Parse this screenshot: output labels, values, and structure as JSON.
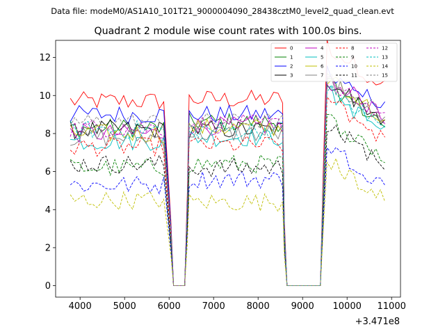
{
  "chart_data": {
    "type": "line",
    "suptitle": "Data file: modeM0/AS1A10_101T21_9000004090_28438cztM0_level2_quad_clean.evt",
    "title": "Quadrant 2 module wise count rates with 100.0s bins.",
    "xlabel": "",
    "ylabel": "",
    "x_offset_label": "+3.471e8",
    "xlim": [
      3450,
      11200
    ],
    "ylim": [
      -0.6,
      12.9
    ],
    "x_ticks": [
      4000,
      5000,
      6000,
      7000,
      8000,
      9000,
      10000,
      11000
    ],
    "x_tick_labels": [
      "4000",
      "5000",
      "6000",
      "7000",
      "8000",
      "9000",
      "10000",
      "11000"
    ],
    "y_ticks": [
      0,
      2,
      4,
      6,
      8,
      10,
      12
    ],
    "y_tick_labels": [
      "0",
      "2",
      "4",
      "6",
      "8",
      "10",
      "12"
    ],
    "grid": false,
    "legend_position": "top-right",
    "gap_segments": [
      {
        "x": [
          5950,
          6000,
          6050,
          6100,
          6150,
          6200,
          6250,
          6300,
          6350,
          6400
        ],
        "zero_from": 6100,
        "zero_to": 6350
      },
      {
        "x": [
          8550,
          8600,
          8650,
          8700,
          8750,
          8800,
          8850,
          8900,
          8950,
          9000,
          9050,
          9100,
          9150,
          9200,
          9250,
          9300,
          9350,
          9400,
          9450,
          9500,
          9550,
          9600
        ],
        "zero_from": 8650,
        "zero_to": 9400
      }
    ],
    "segments": [
      {
        "start": 3780,
        "end": 5950,
        "step": 100
      },
      {
        "start": 6450,
        "end": 8550,
        "step": 100
      },
      {
        "start": 9550,
        "end": 10900,
        "step": 100
      }
    ],
    "series": [
      {
        "name": "0",
        "color": "#ff0000",
        "dash": "solid",
        "levels": [
          9.7,
          9.8,
          11.4
        ]
      },
      {
        "name": "1",
        "color": "#008000",
        "dash": "solid",
        "levels": [
          8.3,
          8.6,
          9.4
        ]
      },
      {
        "name": "2",
        "color": "#0000ff",
        "dash": "solid",
        "levels": [
          9.0,
          9.0,
          10.2
        ]
      },
      {
        "name": "3",
        "color": "#000000",
        "dash": "solid",
        "levels": [
          8.2,
          8.2,
          9.6
        ]
      },
      {
        "name": "4",
        "color": "#bf00bf",
        "dash": "solid",
        "levels": [
          8.0,
          8.4,
          9.8
        ]
      },
      {
        "name": "5",
        "color": "#00bfbf",
        "dash": "solid",
        "levels": [
          7.6,
          7.8,
          9.0
        ]
      },
      {
        "name": "6",
        "color": "#bfbf00",
        "dash": "solid",
        "levels": [
          8.0,
          8.3,
          9.8
        ]
      },
      {
        "name": "7",
        "color": "#808080",
        "dash": "solid",
        "levels": [
          7.8,
          8.0,
          9.6
        ]
      },
      {
        "name": "8",
        "color": "#ff0000",
        "dash": "dashed",
        "levels": [
          7.3,
          7.4,
          8.6
        ]
      },
      {
        "name": "9",
        "color": "#008000",
        "dash": "dashed",
        "levels": [
          6.2,
          6.4,
          7.6
        ]
      },
      {
        "name": "10",
        "color": "#0000ff",
        "dash": "dashed",
        "levels": [
          5.3,
          5.6,
          6.2
        ]
      },
      {
        "name": "11",
        "color": "#000000",
        "dash": "dashed",
        "levels": [
          6.4,
          6.2,
          7.3
        ]
      },
      {
        "name": "12",
        "color": "#bf00bf",
        "dash": "dashed",
        "levels": [
          8.3,
          8.5,
          9.6
        ]
      },
      {
        "name": "13",
        "color": "#00bfbf",
        "dash": "dashed",
        "levels": [
          8.2,
          8.2,
          9.2
        ]
      },
      {
        "name": "14",
        "color": "#bfbf00",
        "dash": "dashed",
        "levels": [
          4.5,
          4.4,
          5.4
        ]
      },
      {
        "name": "15",
        "color": "#808080",
        "dash": "dashed",
        "levels": [
          8.6,
          8.6,
          9.8
        ]
      }
    ]
  }
}
